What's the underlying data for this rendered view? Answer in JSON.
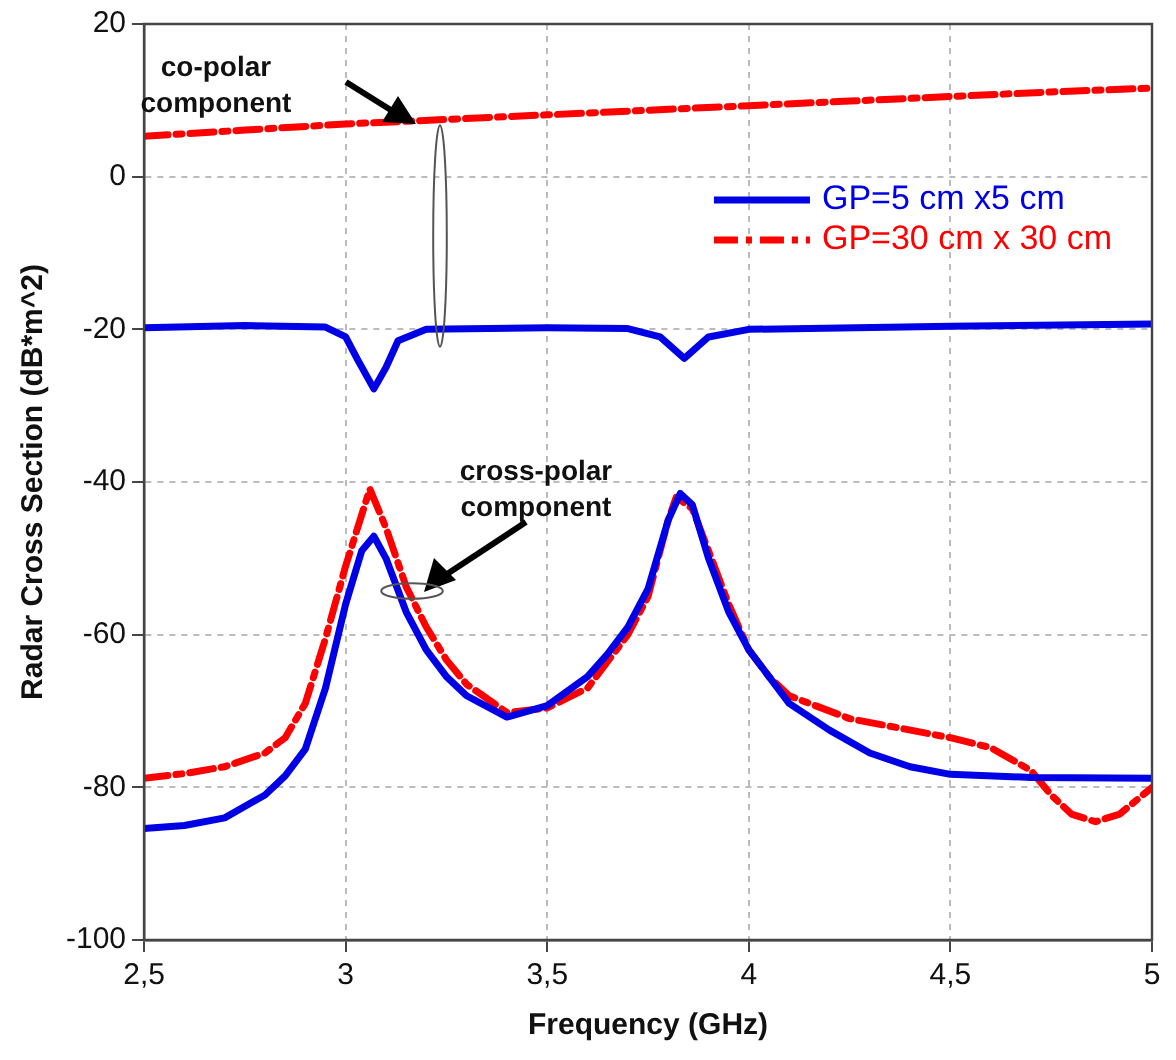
{
  "chart_data": {
    "type": "line",
    "xlabel": "Frequency (GHz)",
    "ylabel": "Radar Cross Section (dB*m^2)",
    "xlim": [
      2.5,
      5
    ],
    "xticks": [
      {
        "value": 2.5,
        "label": "2,5"
      },
      3,
      {
        "value": 3.5,
        "label": "3,5"
      },
      4,
      {
        "value": 4.5,
        "label": "4,5"
      },
      5
    ],
    "ylim": [
      -100,
      20
    ],
    "yticks": [
      -100,
      -80,
      -60,
      -40,
      -20,
      0,
      20
    ],
    "grid": true,
    "legend": "top right",
    "marker": "none",
    "annotations": [
      "co-polar component",
      "cross-polar component"
    ],
    "series": [
      {
        "name": "GP=5 cm x5 cm",
        "color": "#0000e6",
        "line_style": "solid",
        "x": [
          2.5,
          2.75,
          2.95,
          3.0,
          3.03,
          3.07,
          3.1,
          3.13,
          3.2,
          3.5,
          3.7,
          3.78,
          3.84,
          3.9,
          4.0,
          4.5,
          5
        ],
        "values": [
          -19.8,
          -19.5,
          -19.7,
          -21,
          -24,
          -27.8,
          -25,
          -21.5,
          -20,
          -19.8,
          -19.9,
          -21,
          -23.8,
          -21,
          -20,
          -19.6,
          -19.3
        ]
      },
      {
        "name": "GP=30 cm x 30 cm",
        "color": "#ff0000",
        "line_style": "dashed",
        "x": [
          2.5,
          2.75,
          3,
          3.25,
          3.5,
          3.75,
          4,
          4.25,
          4.5,
          4.75,
          5
        ],
        "values": [
          5.3,
          6.1,
          6.9,
          7.5,
          8.1,
          8.7,
          9.3,
          9.9,
          10.5,
          11.1,
          11.6
        ]
      },
      {
        "color": "#0000e6",
        "line_style": "solid",
        "x": [
          2.5,
          2.6,
          2.7,
          2.8,
          2.85,
          2.9,
          2.95,
          3.0,
          3.04,
          3.07,
          3.1,
          3.15,
          3.2,
          3.25,
          3.3,
          3.4,
          3.5,
          3.6,
          3.65,
          3.7,
          3.75,
          3.8,
          3.83,
          3.86,
          3.9,
          3.95,
          4.0,
          4.1,
          4.2,
          4.3,
          4.4,
          4.5,
          4.7,
          5
        ],
        "values": [
          -85.4,
          -85,
          -84,
          -81,
          -78.5,
          -75,
          -67,
          -56,
          -49,
          -47.1,
          -50,
          -57,
          -62,
          -65.5,
          -68,
          -70.8,
          -69.3,
          -65.5,
          -62.5,
          -59,
          -54,
          -45,
          -41.5,
          -43,
          -50,
          -57,
          -62,
          -69,
          -72.5,
          -75.5,
          -77.3,
          -78.3,
          -78.7,
          -78.8
        ]
      },
      {
        "color": "#ff0000",
        "line_style": "dashed",
        "x": [
          2.5,
          2.6,
          2.7,
          2.8,
          2.85,
          2.9,
          2.95,
          3.0,
          3.06,
          3.1,
          3.15,
          3.2,
          3.25,
          3.3,
          3.4,
          3.5,
          3.6,
          3.7,
          3.75,
          3.8,
          3.82,
          3.86,
          3.9,
          3.95,
          4.0,
          4.05,
          4.1,
          4.25,
          4.5,
          4.6,
          4.7,
          4.75,
          4.8,
          4.86,
          4.92,
          5
        ],
        "values": [
          -78.8,
          -78.2,
          -77.3,
          -75.5,
          -73.5,
          -69,
          -60.5,
          -51,
          -40.9,
          -46,
          -53.7,
          -59,
          -63.3,
          -66.5,
          -70.2,
          -69.6,
          -67,
          -60,
          -55,
          -45,
          -42,
          -43.5,
          -49,
          -56,
          -62,
          -65.5,
          -68,
          -71,
          -73.5,
          -74.8,
          -77.8,
          -81,
          -83.5,
          -84.5,
          -83.5,
          -80
        ]
      }
    ]
  }
}
